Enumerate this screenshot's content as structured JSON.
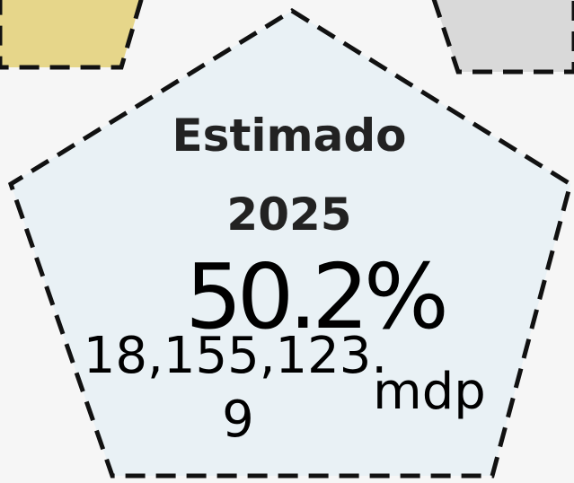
{
  "title": "Estimado",
  "year": "2025",
  "percent": "50.2%",
  "amount": "18,155,123.",
  "amount_tail": "9",
  "unit": "mdp"
}
